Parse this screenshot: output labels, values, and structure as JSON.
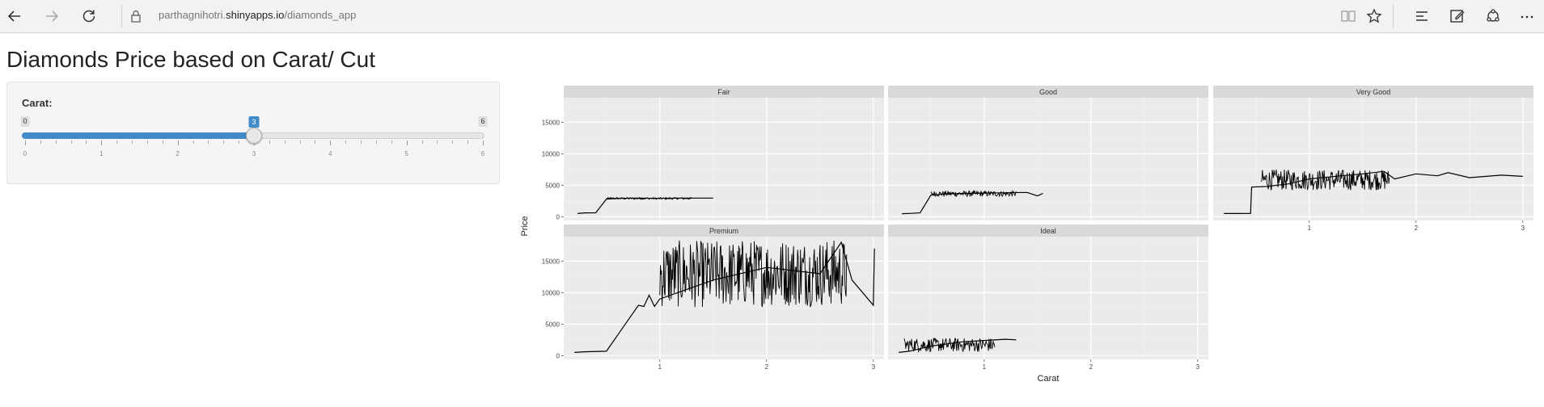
{
  "browser": {
    "url_prefix": "parthagnihotri.",
    "url_host": "shinyapps.io",
    "url_path": "/diamonds_app",
    "icons": [
      "back-arrow-icon",
      "forward-arrow-icon",
      "refresh-icon",
      "lock-icon",
      "reading-view-icon",
      "favorite-star-icon",
      "hub-icon",
      "web-note-icon",
      "share-icon",
      "more-icon"
    ]
  },
  "page": {
    "title": "Diamonds Price based on Carat/ Cut"
  },
  "slider": {
    "label": "Carat:",
    "min": 0,
    "max": 6,
    "value": 3,
    "min_label": "0",
    "max_label": "6",
    "value_label": "3",
    "tick_labels": [
      "0",
      "1",
      "2",
      "3",
      "4",
      "5",
      "6"
    ]
  },
  "colors": {
    "slider_accent": "#428bca",
    "panel_bg": "#ebebeb",
    "strip_bg": "#d9d9d9"
  },
  "chart_data": {
    "type": "line",
    "xlabel": "Carat",
    "ylabel": "Price",
    "xlim": [
      0.1,
      3.1
    ],
    "ylim": [
      -600,
      18900
    ],
    "x_ticks": [
      1,
      2,
      3
    ],
    "y_ticks": [
      0,
      5000,
      10000,
      15000
    ],
    "facets": [
      "Fair",
      "Good",
      "Very Good",
      "Premium",
      "Ideal"
    ],
    "series": [
      {
        "name": "Fair",
        "points": [
          [
            0.23,
            500
          ],
          [
            0.3,
            600
          ],
          [
            0.4,
            620
          ],
          [
            0.5,
            2800
          ],
          [
            0.6,
            2900
          ],
          [
            0.8,
            2950
          ],
          [
            1.0,
            2900
          ],
          [
            1.2,
            2950
          ],
          [
            1.5,
            2950
          ]
        ],
        "bands": [
          [
            0.5,
            1.3,
            2750,
            3050
          ]
        ]
      },
      {
        "name": "Good",
        "points": [
          [
            0.23,
            480
          ],
          [
            0.3,
            520
          ],
          [
            0.4,
            600
          ],
          [
            0.5,
            3400
          ],
          [
            0.6,
            3600
          ],
          [
            0.8,
            3700
          ],
          [
            1.0,
            3750
          ],
          [
            1.2,
            3800
          ],
          [
            1.4,
            3850
          ],
          [
            1.5,
            3300
          ],
          [
            1.55,
            3700
          ]
        ],
        "bands": [
          [
            0.5,
            1.3,
            3200,
            4100
          ]
        ]
      },
      {
        "name": "Very Good",
        "points": [
          [
            0.2,
            500
          ],
          [
            0.3,
            500
          ],
          [
            0.45,
            520
          ],
          [
            0.46,
            4700
          ],
          [
            0.6,
            4800
          ],
          [
            0.8,
            5200
          ],
          [
            1.0,
            6000
          ],
          [
            1.3,
            6500
          ],
          [
            1.5,
            6800
          ],
          [
            1.7,
            7200
          ],
          [
            1.8,
            6000
          ],
          [
            2.0,
            6800
          ],
          [
            2.2,
            6500
          ],
          [
            2.3,
            7000
          ],
          [
            2.5,
            6200
          ],
          [
            2.8,
            6600
          ],
          [
            3.0,
            6400
          ]
        ],
        "bands": [
          [
            0.55,
            1.75,
            4200,
            7500
          ]
        ]
      },
      {
        "name": "Premium",
        "points": [
          [
            0.2,
            500
          ],
          [
            0.3,
            600
          ],
          [
            0.5,
            700
          ],
          [
            0.8,
            8000
          ],
          [
            0.85,
            7800
          ],
          [
            0.9,
            9600
          ],
          [
            0.95,
            7800
          ],
          [
            1.0,
            9000
          ],
          [
            1.5,
            12000
          ],
          [
            2.0,
            14000
          ],
          [
            2.5,
            13000
          ],
          [
            2.7,
            18000
          ],
          [
            2.8,
            12000
          ],
          [
            3.0,
            8000
          ],
          [
            3.01,
            17000
          ]
        ],
        "bands": [
          [
            1.0,
            1.75,
            7600,
            18300
          ],
          [
            1.75,
            2.75,
            7800,
            18500
          ]
        ]
      },
      {
        "name": "Ideal",
        "points": [
          [
            0.2,
            500
          ],
          [
            0.3,
            700
          ],
          [
            0.5,
            1500
          ],
          [
            0.8,
            2200
          ],
          [
            1.0,
            2400
          ],
          [
            1.2,
            2600
          ],
          [
            1.3,
            2500
          ]
        ],
        "bands": [
          [
            0.25,
            1.1,
            600,
            2800
          ]
        ]
      }
    ]
  }
}
